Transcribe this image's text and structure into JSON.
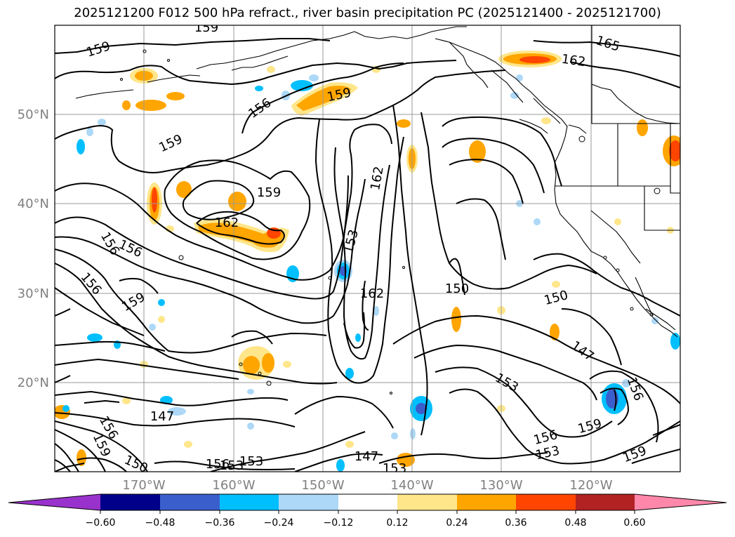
{
  "title": "2025121200 F012 500 hPa refract., river basin precipitation PC (2025121400 - 2025121700)",
  "map": {
    "lat_labels": [
      "50°N",
      "40°N",
      "30°N",
      "20°N"
    ],
    "lon_labels": [
      "170°W",
      "160°W",
      "150°W",
      "140°W",
      "130°W",
      "120°W"
    ],
    "contour_labels": [
      "159",
      "159",
      "156",
      "159",
      "159",
      "159",
      "162",
      "156",
      "156",
      "159",
      "156",
      "162",
      "153",
      "162",
      "150",
      "150",
      "147",
      "153",
      "156",
      "159",
      "147",
      "159",
      "156",
      "153",
      "150",
      "147",
      "153",
      "153",
      "165",
      "162",
      "156",
      "159",
      "156",
      "153"
    ]
  },
  "colorbar": {
    "tick_labels": [
      "−0.60",
      "−0.48",
      "−0.36",
      "−0.24",
      "−0.12",
      "0.12",
      "0.24",
      "0.36",
      "0.48",
      "0.60"
    ],
    "colors": {
      "under": "#9b30d0",
      "bins": [
        "#9932cc",
        "#00008b",
        "#3a5fcd",
        "#00bfff",
        "#add8f7",
        "#ffffff",
        "#ffe68a",
        "#ffa500",
        "#ff4500",
        "#b22222",
        "#ff88aa"
      ],
      "over": "#ff88aa"
    }
  },
  "colors": {
    "contour": "#000000",
    "grid": "#9a9a9a",
    "coast": "#000000",
    "pos_light": "#ffe68a",
    "pos_mid": "#ffa500",
    "pos_high": "#ff4500",
    "neg_light": "#add8f7",
    "neg_mid": "#00bfff",
    "neg_high": "#3a5fcd",
    "neg_extreme": "#7b2fd0"
  }
}
